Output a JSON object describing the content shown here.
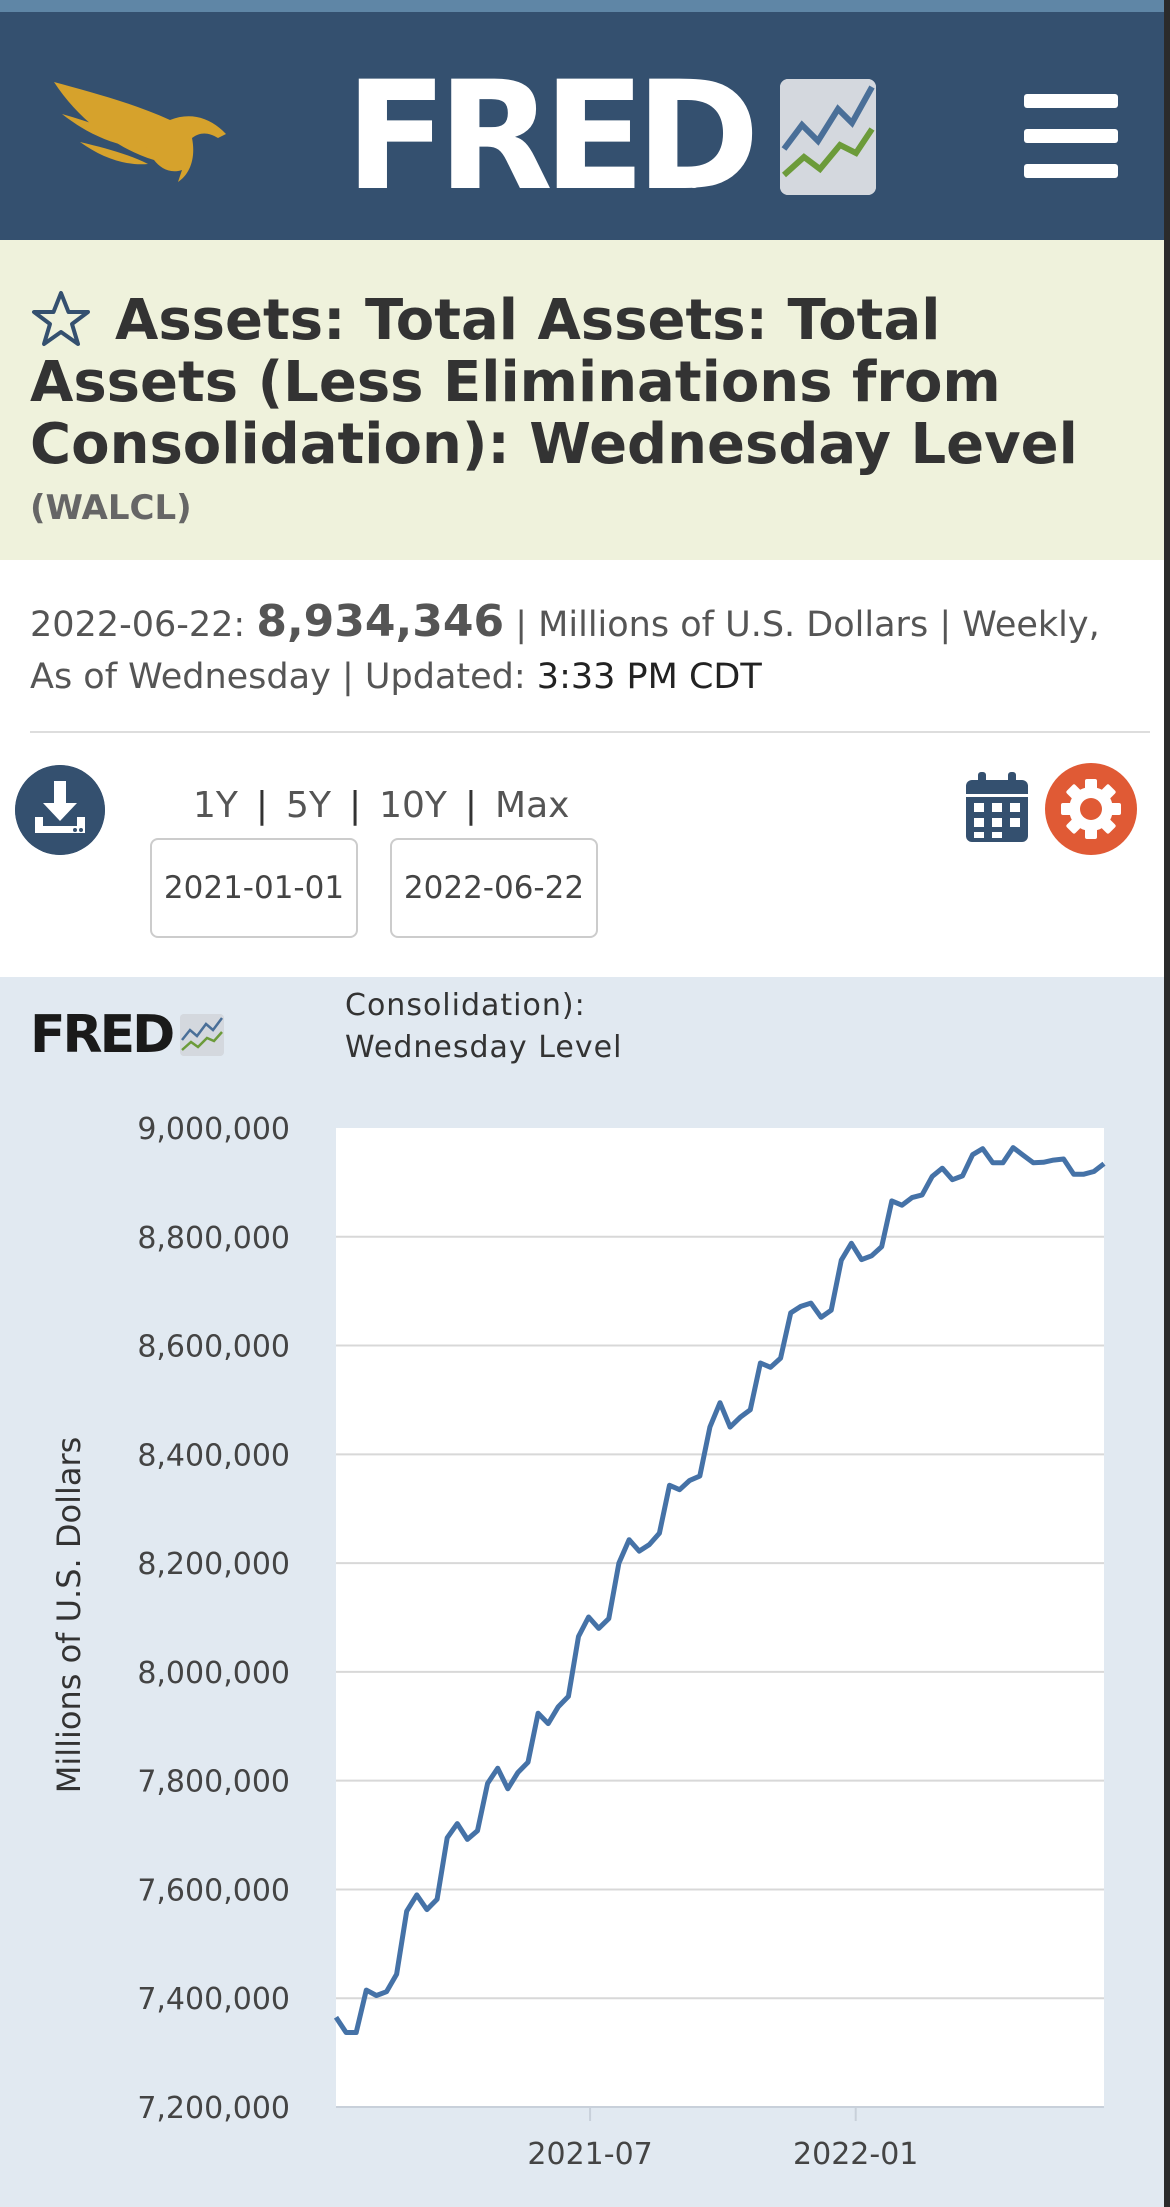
{
  "header": {
    "logo_text": "FRED",
    "logo_registered": "®",
    "eagle_icon": "eagle-logo-icon",
    "menu_icon": "hamburger-menu-icon",
    "colors": {
      "header_bg": "#34506f",
      "eagle": "#d6a22c",
      "graph_green": "#6c9b3a",
      "graph_blue": "#4a6f98"
    }
  },
  "series": {
    "star_icon": "star-outline-icon",
    "title": "Assets: Total Assets: Total Assets (Less Eliminations from Consolidation): Wednesday Level",
    "id": "(WALCL)"
  },
  "observation": {
    "date": "2022-06-22:",
    "value": "8,934,346",
    "sep1": "|",
    "units": "Millions of U.S. Dollars",
    "sep2": "|",
    "frequency": "Weekly, As of Wednesday",
    "sep3": "|",
    "updated_label": "Updated:",
    "updated_time": "3:33 PM CDT"
  },
  "controls": {
    "download_icon": "download-icon",
    "ranges": [
      "1Y",
      "5Y",
      "10Y",
      "Max"
    ],
    "range_sep": "|",
    "start_date": "2021-01-01",
    "end_date": "2022-06-22",
    "calendar_icon": "calendar-icon",
    "settings_icon": "gear-icon",
    "colors": {
      "gear": "#e05a35",
      "calendar": "#34506f"
    }
  },
  "chart_header": {
    "logo_text": "FRED",
    "title_line1": "Consolidation):",
    "title_line2": "Wednesday Level"
  },
  "chart_data": {
    "type": "line",
    "ylabel": "Millions of U.S. Dollars",
    "ylim": [
      7200000,
      9000000
    ],
    "yticks": [
      "9,000,000",
      "8,800,000",
      "8,600,000",
      "8,400,000",
      "8,200,000",
      "8,000,000",
      "7,800,000",
      "7,600,000",
      "7,400,000",
      "7,200,000"
    ],
    "ytick_values": [
      9000000,
      8800000,
      8600000,
      8400000,
      8200000,
      8000000,
      7800000,
      7600000,
      7400000,
      7200000
    ],
    "xrange": [
      "2021-01-06",
      "2022-06-22"
    ],
    "xticks": [
      {
        "label": "2021-07",
        "date": "2021-07-01"
      },
      {
        "label": "2022-01",
        "date": "2022-01-01"
      }
    ],
    "grid": true,
    "series": [
      {
        "color": "#4572a7",
        "points": [
          [
            "2021-01-06",
            7365000
          ],
          [
            "2021-01-13",
            7337000
          ],
          [
            "2021-01-20",
            7337000
          ],
          [
            "2021-01-27",
            7415000
          ],
          [
            "2021-02-03",
            7405000
          ],
          [
            "2021-02-10",
            7412000
          ],
          [
            "2021-02-17",
            7444000
          ],
          [
            "2021-02-24",
            7560000
          ],
          [
            "2021-03-03",
            7590000
          ],
          [
            "2021-03-10",
            7563000
          ],
          [
            "2021-03-17",
            7582000
          ],
          [
            "2021-03-24",
            7695000
          ],
          [
            "2021-03-31",
            7721000
          ],
          [
            "2021-04-07",
            7692000
          ],
          [
            "2021-04-14",
            7708000
          ],
          [
            "2021-04-21",
            7795000
          ],
          [
            "2021-04-28",
            7823000
          ],
          [
            "2021-05-05",
            7785000
          ],
          [
            "2021-05-12",
            7815000
          ],
          [
            "2021-05-19",
            7834000
          ],
          [
            "2021-05-26",
            7924000
          ],
          [
            "2021-06-02",
            7905000
          ],
          [
            "2021-06-09",
            7936000
          ],
          [
            "2021-06-16",
            7955000
          ],
          [
            "2021-06-23",
            8065000
          ],
          [
            "2021-06-30",
            8101000
          ],
          [
            "2021-07-07",
            8080000
          ],
          [
            "2021-07-14",
            8098000
          ],
          [
            "2021-07-21",
            8200000
          ],
          [
            "2021-07-28",
            8243000
          ],
          [
            "2021-08-04",
            8222000
          ],
          [
            "2021-08-11",
            8234000
          ],
          [
            "2021-08-18",
            8255000
          ],
          [
            "2021-08-25",
            8343000
          ],
          [
            "2021-09-01",
            8335000
          ],
          [
            "2021-09-08",
            8352000
          ],
          [
            "2021-09-15",
            8360000
          ],
          [
            "2021-09-22",
            8450000
          ],
          [
            "2021-09-29",
            8495000
          ],
          [
            "2021-10-06",
            8450000
          ],
          [
            "2021-10-13",
            8468000
          ],
          [
            "2021-10-20",
            8482000
          ],
          [
            "2021-10-27",
            8568000
          ],
          [
            "2021-11-03",
            8560000
          ],
          [
            "2021-11-10",
            8577000
          ],
          [
            "2021-11-17",
            8660000
          ],
          [
            "2021-11-24",
            8672000
          ],
          [
            "2021-12-01",
            8678000
          ],
          [
            "2021-12-08",
            8652000
          ],
          [
            "2021-12-15",
            8665000
          ],
          [
            "2021-12-22",
            8757000
          ],
          [
            "2021-12-29",
            8788000
          ],
          [
            "2022-01-05",
            8758000
          ],
          [
            "2022-01-12",
            8765000
          ],
          [
            "2022-01-19",
            8782000
          ],
          [
            "2022-01-26",
            8866000
          ],
          [
            "2022-02-02",
            8858000
          ],
          [
            "2022-02-09",
            8872000
          ],
          [
            "2022-02-16",
            8877000
          ],
          [
            "2022-02-23",
            8911000
          ],
          [
            "2022-03-02",
            8926000
          ],
          [
            "2022-03-09",
            8905000
          ],
          [
            "2022-03-16",
            8912000
          ],
          [
            "2022-03-23",
            8951000
          ],
          [
            "2022-03-30",
            8962000
          ],
          [
            "2022-04-06",
            8936000
          ],
          [
            "2022-04-13",
            8936000
          ],
          [
            "2022-04-20",
            8964000
          ],
          [
            "2022-04-27",
            8950000
          ],
          [
            "2022-05-04",
            8936000
          ],
          [
            "2022-05-11",
            8937000
          ],
          [
            "2022-05-18",
            8941000
          ],
          [
            "2022-05-25",
            8943000
          ],
          [
            "2022-06-01",
            8915000
          ],
          [
            "2022-06-08",
            8915000
          ],
          [
            "2022-06-15",
            8920000
          ],
          [
            "2022-06-22",
            8934346
          ]
        ]
      }
    ]
  }
}
